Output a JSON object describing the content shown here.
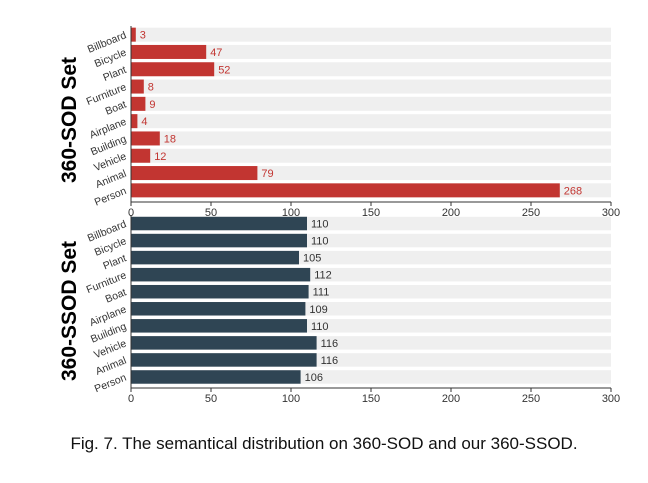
{
  "figure": {
    "caption": "Fig. 7. The semantical distribution on 360-SOD and our 360-SSOD."
  },
  "chart_data": [
    {
      "type": "bar",
      "orientation": "horizontal",
      "panel_label": "360-SOD Set",
      "categories": [
        "Billboard",
        "Bicycle",
        "Plant",
        "Furniture",
        "Boat",
        "Airplane",
        "Building",
        "Vehicle",
        "Animal",
        "Person"
      ],
      "values": [
        3,
        47,
        52,
        8,
        9,
        4,
        18,
        12,
        79,
        268
      ],
      "xlim": [
        0,
        300
      ],
      "xticks": [
        0,
        50,
        100,
        150,
        200,
        250,
        300
      ],
      "bar_color": "#c23531",
      "label_color": "#c23531",
      "background_band_color": "#efefef",
      "data_labels": true
    },
    {
      "type": "bar",
      "orientation": "horizontal",
      "panel_label": "360-SSOD Set",
      "categories": [
        "Billboard",
        "Bicycle",
        "Plant",
        "Furniture",
        "Boat",
        "Airplane",
        "Building",
        "Vehicle",
        "Animal",
        "Person"
      ],
      "values": [
        110,
        110,
        105,
        112,
        111,
        109,
        110,
        116,
        116,
        106
      ],
      "xlim": [
        0,
        300
      ],
      "xticks": [
        0,
        50,
        100,
        150,
        200,
        250,
        300
      ],
      "bar_color": "#2f4554",
      "label_color": "#333333",
      "background_band_color": "#efefef",
      "data_labels": true
    }
  ]
}
